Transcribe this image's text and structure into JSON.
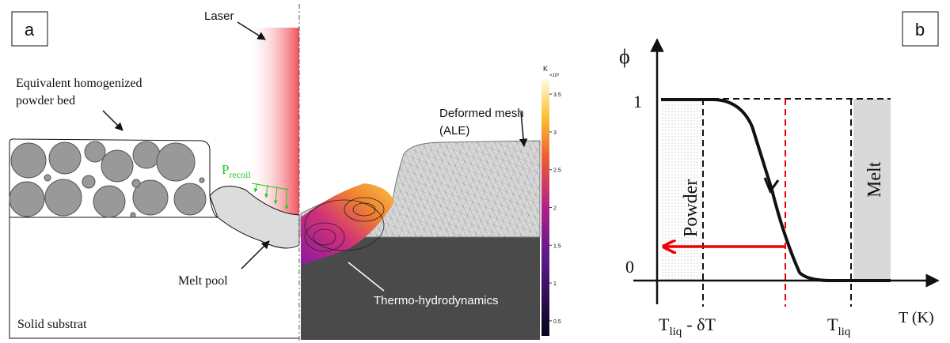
{
  "panel_a": {
    "label": "a",
    "laser": "Laser",
    "powder_bed": [
      "Equivalent homogenized",
      "powder bed"
    ],
    "recoil": {
      "symbol": "P",
      "subscript": "recoil"
    },
    "melt_pool": "Melt pool",
    "substrate": "Solid substrat",
    "mesh": [
      "Deformed mesh",
      "(ALE)"
    ],
    "thermo": "Thermo-hydrodynamics",
    "colorbar": {
      "unit": "K",
      "scale": "×10³",
      "ticks": [
        3.5,
        3,
        2.5,
        2,
        1.5,
        1,
        0.5
      ]
    }
  },
  "panel_b": {
    "label": "b",
    "y_axis": "ϕ",
    "x_axis": "T (K)",
    "y_ticks": [
      1,
      0
    ],
    "powder": "Powder",
    "melt": "Melt",
    "t_liq_minus": {
      "symbol": "T",
      "subscript": "liq",
      "suffix": "- δT"
    },
    "t_liq": {
      "symbol": "T",
      "subscript": "liq"
    }
  }
}
